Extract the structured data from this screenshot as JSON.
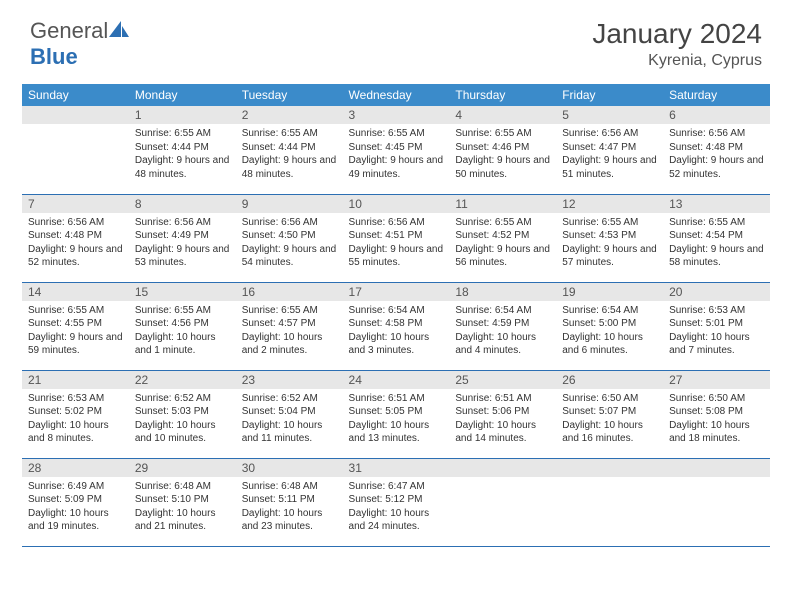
{
  "brand": {
    "part1": "General",
    "part2": "Blue"
  },
  "title": "January 2024",
  "location": "Kyrenia, Cyprus",
  "colors": {
    "header_bg": "#3b8bca",
    "daynum_bg": "#e7e7e7",
    "rule": "#2c6fb3",
    "text": "#333333"
  },
  "day_names": [
    "Sunday",
    "Monday",
    "Tuesday",
    "Wednesday",
    "Thursday",
    "Friday",
    "Saturday"
  ],
  "weeks": [
    [
      null,
      {
        "n": "1",
        "sr": "Sunrise: 6:55 AM",
        "ss": "Sunset: 4:44 PM",
        "dl": "Daylight: 9 hours and 48 minutes."
      },
      {
        "n": "2",
        "sr": "Sunrise: 6:55 AM",
        "ss": "Sunset: 4:44 PM",
        "dl": "Daylight: 9 hours and 48 minutes."
      },
      {
        "n": "3",
        "sr": "Sunrise: 6:55 AM",
        "ss": "Sunset: 4:45 PM",
        "dl": "Daylight: 9 hours and 49 minutes."
      },
      {
        "n": "4",
        "sr": "Sunrise: 6:55 AM",
        "ss": "Sunset: 4:46 PM",
        "dl": "Daylight: 9 hours and 50 minutes."
      },
      {
        "n": "5",
        "sr": "Sunrise: 6:56 AM",
        "ss": "Sunset: 4:47 PM",
        "dl": "Daylight: 9 hours and 51 minutes."
      },
      {
        "n": "6",
        "sr": "Sunrise: 6:56 AM",
        "ss": "Sunset: 4:48 PM",
        "dl": "Daylight: 9 hours and 52 minutes."
      }
    ],
    [
      {
        "n": "7",
        "sr": "Sunrise: 6:56 AM",
        "ss": "Sunset: 4:48 PM",
        "dl": "Daylight: 9 hours and 52 minutes."
      },
      {
        "n": "8",
        "sr": "Sunrise: 6:56 AM",
        "ss": "Sunset: 4:49 PM",
        "dl": "Daylight: 9 hours and 53 minutes."
      },
      {
        "n": "9",
        "sr": "Sunrise: 6:56 AM",
        "ss": "Sunset: 4:50 PM",
        "dl": "Daylight: 9 hours and 54 minutes."
      },
      {
        "n": "10",
        "sr": "Sunrise: 6:56 AM",
        "ss": "Sunset: 4:51 PM",
        "dl": "Daylight: 9 hours and 55 minutes."
      },
      {
        "n": "11",
        "sr": "Sunrise: 6:55 AM",
        "ss": "Sunset: 4:52 PM",
        "dl": "Daylight: 9 hours and 56 minutes."
      },
      {
        "n": "12",
        "sr": "Sunrise: 6:55 AM",
        "ss": "Sunset: 4:53 PM",
        "dl": "Daylight: 9 hours and 57 minutes."
      },
      {
        "n": "13",
        "sr": "Sunrise: 6:55 AM",
        "ss": "Sunset: 4:54 PM",
        "dl": "Daylight: 9 hours and 58 minutes."
      }
    ],
    [
      {
        "n": "14",
        "sr": "Sunrise: 6:55 AM",
        "ss": "Sunset: 4:55 PM",
        "dl": "Daylight: 9 hours and 59 minutes."
      },
      {
        "n": "15",
        "sr": "Sunrise: 6:55 AM",
        "ss": "Sunset: 4:56 PM",
        "dl": "Daylight: 10 hours and 1 minute."
      },
      {
        "n": "16",
        "sr": "Sunrise: 6:55 AM",
        "ss": "Sunset: 4:57 PM",
        "dl": "Daylight: 10 hours and 2 minutes."
      },
      {
        "n": "17",
        "sr": "Sunrise: 6:54 AM",
        "ss": "Sunset: 4:58 PM",
        "dl": "Daylight: 10 hours and 3 minutes."
      },
      {
        "n": "18",
        "sr": "Sunrise: 6:54 AM",
        "ss": "Sunset: 4:59 PM",
        "dl": "Daylight: 10 hours and 4 minutes."
      },
      {
        "n": "19",
        "sr": "Sunrise: 6:54 AM",
        "ss": "Sunset: 5:00 PM",
        "dl": "Daylight: 10 hours and 6 minutes."
      },
      {
        "n": "20",
        "sr": "Sunrise: 6:53 AM",
        "ss": "Sunset: 5:01 PM",
        "dl": "Daylight: 10 hours and 7 minutes."
      }
    ],
    [
      {
        "n": "21",
        "sr": "Sunrise: 6:53 AM",
        "ss": "Sunset: 5:02 PM",
        "dl": "Daylight: 10 hours and 8 minutes."
      },
      {
        "n": "22",
        "sr": "Sunrise: 6:52 AM",
        "ss": "Sunset: 5:03 PM",
        "dl": "Daylight: 10 hours and 10 minutes."
      },
      {
        "n": "23",
        "sr": "Sunrise: 6:52 AM",
        "ss": "Sunset: 5:04 PM",
        "dl": "Daylight: 10 hours and 11 minutes."
      },
      {
        "n": "24",
        "sr": "Sunrise: 6:51 AM",
        "ss": "Sunset: 5:05 PM",
        "dl": "Daylight: 10 hours and 13 minutes."
      },
      {
        "n": "25",
        "sr": "Sunrise: 6:51 AM",
        "ss": "Sunset: 5:06 PM",
        "dl": "Daylight: 10 hours and 14 minutes."
      },
      {
        "n": "26",
        "sr": "Sunrise: 6:50 AM",
        "ss": "Sunset: 5:07 PM",
        "dl": "Daylight: 10 hours and 16 minutes."
      },
      {
        "n": "27",
        "sr": "Sunrise: 6:50 AM",
        "ss": "Sunset: 5:08 PM",
        "dl": "Daylight: 10 hours and 18 minutes."
      }
    ],
    [
      {
        "n": "28",
        "sr": "Sunrise: 6:49 AM",
        "ss": "Sunset: 5:09 PM",
        "dl": "Daylight: 10 hours and 19 minutes."
      },
      {
        "n": "29",
        "sr": "Sunrise: 6:48 AM",
        "ss": "Sunset: 5:10 PM",
        "dl": "Daylight: 10 hours and 21 minutes."
      },
      {
        "n": "30",
        "sr": "Sunrise: 6:48 AM",
        "ss": "Sunset: 5:11 PM",
        "dl": "Daylight: 10 hours and 23 minutes."
      },
      {
        "n": "31",
        "sr": "Sunrise: 6:47 AM",
        "ss": "Sunset: 5:12 PM",
        "dl": "Daylight: 10 hours and 24 minutes."
      },
      null,
      null,
      null
    ]
  ]
}
